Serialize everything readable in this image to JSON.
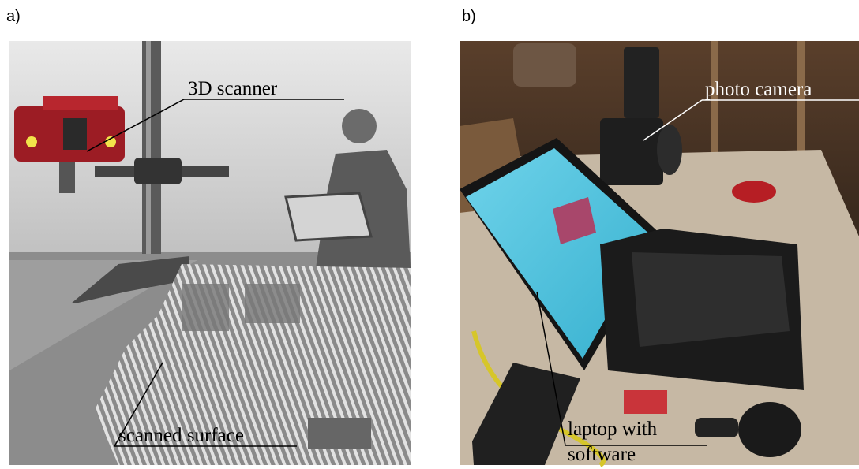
{
  "panels": [
    {
      "label": "a)",
      "annotations": [
        "3D scanner",
        "scanned surface"
      ]
    },
    {
      "label": "b)",
      "annotations": [
        "photo camera",
        "laptop with",
        "software"
      ]
    }
  ]
}
